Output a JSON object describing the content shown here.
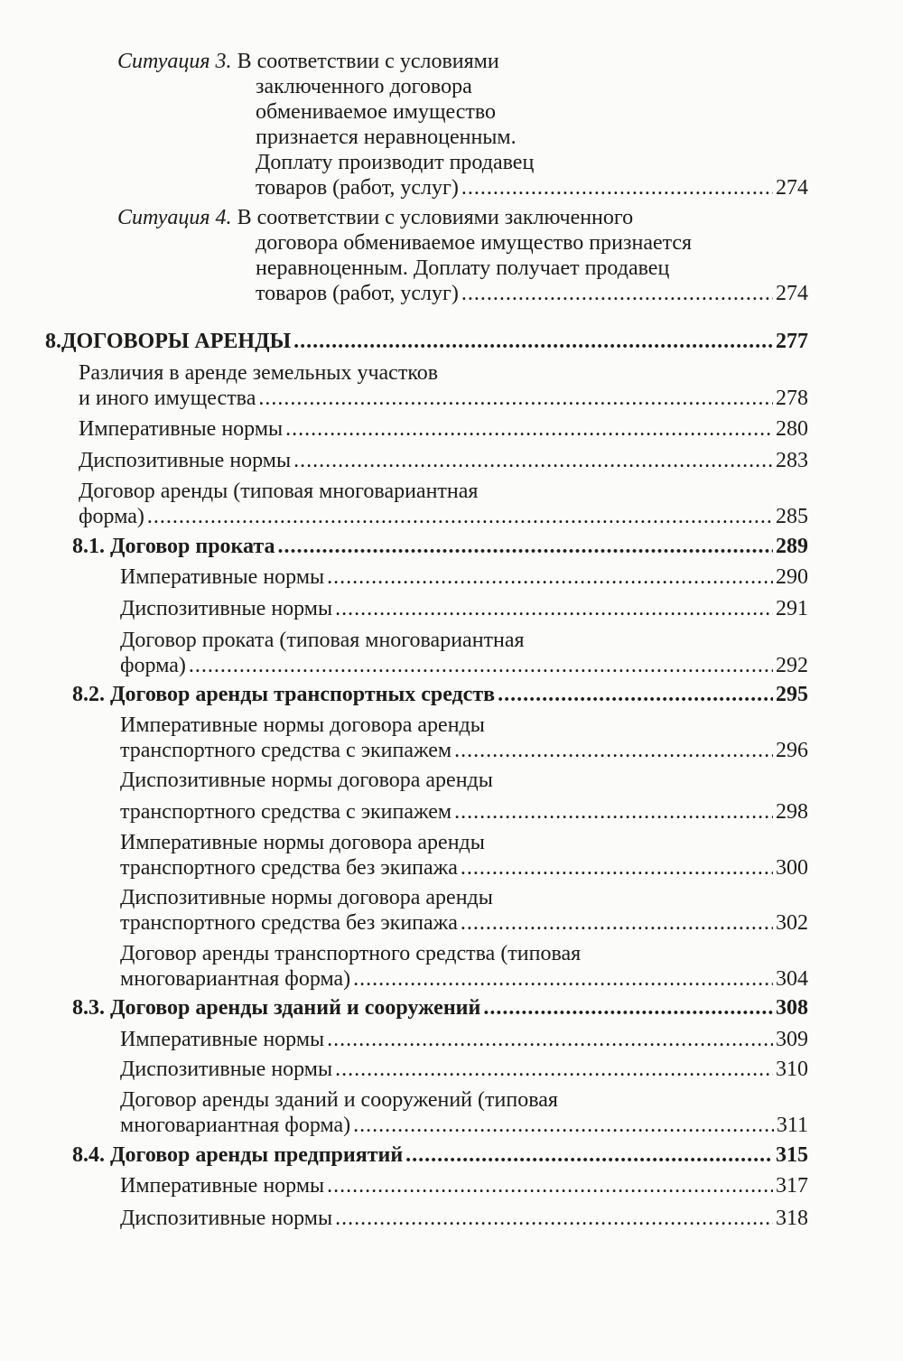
{
  "toc": [
    {
      "type": "situation",
      "label": "Ситуация 3.",
      "lines": [
        "В соответствии с условиями",
        "заключенного договора",
        "обмениваемое имущество",
        "признается неравноценным.",
        "Доплату производит продавец",
        "товаров (работ, услуг)"
      ],
      "page": "274"
    },
    {
      "type": "situation",
      "label": "Ситуация 4.",
      "lines": [
        "В соответствии с условиями заключенного",
        "договора обмениваемое имущество признается",
        "неравноценным. Доплату получает продавец",
        "товаров (работ, услуг)"
      ],
      "page": "274"
    },
    {
      "type": "chapter",
      "number": "8.",
      "lines": [
        "ДОГОВОРЫ АРЕНДЫ"
      ],
      "page": "277"
    },
    {
      "type": "item1",
      "lines": [
        "Различия в аренде земельных участков",
        "и иного имущества"
      ],
      "page": "278"
    },
    {
      "type": "item1",
      "lines": [
        "Императивные нормы"
      ],
      "page": "280"
    },
    {
      "type": "item1",
      "lines": [
        "Диспозитивные нормы"
      ],
      "page": "283"
    },
    {
      "type": "item1",
      "lines": [
        "Договор аренды (типовая многовариантная",
        "форма)"
      ],
      "page": "285"
    },
    {
      "type": "section",
      "lines": [
        "8.1. Договор проката"
      ],
      "page": "289"
    },
    {
      "type": "item2",
      "lines": [
        "Императивные нормы"
      ],
      "page": "290"
    },
    {
      "type": "item2",
      "lines": [
        "Диспозитивные нормы"
      ],
      "page": "291"
    },
    {
      "type": "item2",
      "lines": [
        "Договор проката (типовая многовариантная",
        "форма)"
      ],
      "page": "292"
    },
    {
      "type": "section",
      "lines": [
        "8.2. Договор аренды транспортных средств"
      ],
      "page": "295"
    },
    {
      "type": "item2",
      "lines": [
        "Императивные нормы договора аренды",
        "транспортного средства с экипажем"
      ],
      "page": "296"
    },
    {
      "type": "item2",
      "lines": [
        "Диспозитивные нормы договора аренды",
        "транспортного  средства с экипажем"
      ],
      "page": "298"
    },
    {
      "type": "item2",
      "lines": [
        "Императивные нормы договора аренды",
        "транспортного  средства без экипажа"
      ],
      "page": "300"
    },
    {
      "type": "item2",
      "lines": [
        "Диспозитивные нормы договора аренды",
        "транспортного средства без экипажа"
      ],
      "page": "302"
    },
    {
      "type": "item2",
      "lines": [
        "Договор аренды транспортного средства (типовая",
        "многовариантная форма)"
      ],
      "page": "304"
    },
    {
      "type": "section",
      "lines": [
        "8.3. Договор аренды зданий и сооружений"
      ],
      "page": "308"
    },
    {
      "type": "item2",
      "lines": [
        "Императивные нормы"
      ],
      "page": "309"
    },
    {
      "type": "item2",
      "lines": [
        "Диспозитивные нормы"
      ],
      "page": "310"
    },
    {
      "type": "item2",
      "lines": [
        "Договор аренды зданий и сооружений (типовая",
        "многовариантная форма)"
      ],
      "page": "311"
    },
    {
      "type": "section",
      "lines": [
        "8.4. Договор аренды предприятий"
      ],
      "page": "315"
    },
    {
      "type": "item2",
      "lines": [
        "Императивные нормы"
      ],
      "page": "317"
    },
    {
      "type": "item2",
      "lines": [
        "Диспозитивные нормы"
      ],
      "page": "318"
    }
  ]
}
